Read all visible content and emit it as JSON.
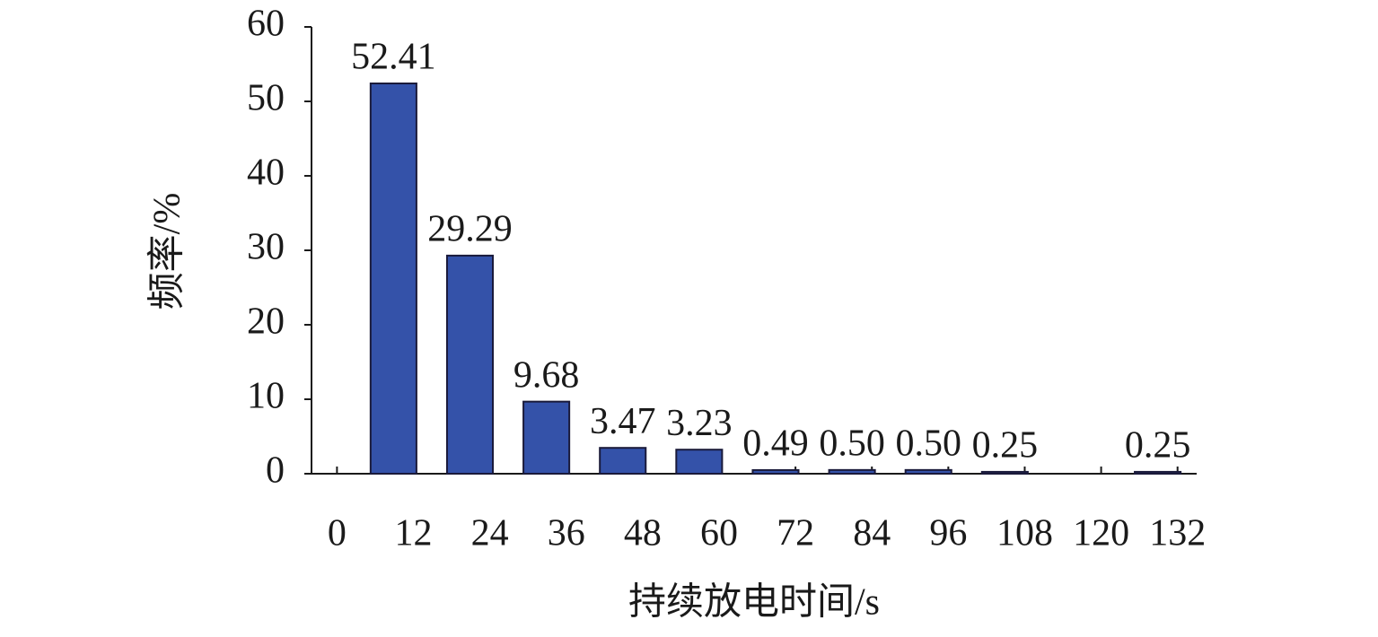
{
  "chart_data": {
    "type": "histogram",
    "x_label": "持续放电时间/s",
    "y_label": "频率/%",
    "bins": [
      0,
      12,
      24,
      36,
      48,
      60,
      72,
      84,
      96,
      108,
      120,
      132
    ],
    "values": [
      52.41,
      29.29,
      9.68,
      3.47,
      3.23,
      0.49,
      0.5,
      0.5,
      0.25,
      null,
      0.25
    ],
    "value_labels": [
      "52.41",
      "29.29",
      "9.68",
      "3.47",
      "3.23",
      "0.49",
      "0.50",
      "0.50",
      "0.25",
      null,
      "0.25"
    ],
    "color": "#3452a9",
    "xlim": [
      -4,
      135
    ],
    "xticks": [
      0,
      12,
      24,
      36,
      48,
      60,
      72,
      84,
      96,
      108,
      120,
      132
    ],
    "ylim": [
      0,
      60
    ],
    "yticks": [
      0,
      10,
      20,
      30,
      40,
      50,
      60
    ]
  }
}
